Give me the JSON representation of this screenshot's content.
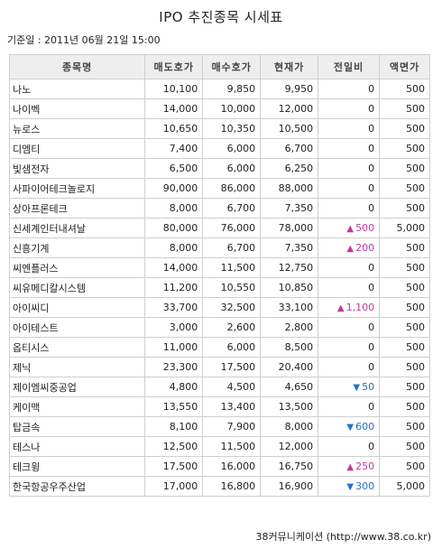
{
  "title": "IPO 추진종목 시세표",
  "date_line": "기준일 : 2011년 06월 21일 15:00",
  "columns": [
    "종목명",
    "매도호가",
    "매수호가",
    "현재가",
    "전일비",
    "액면가"
  ],
  "colors": {
    "up": "#c03aa0",
    "down": "#2970c4",
    "header_bg": "#eeeeee",
    "border": "#cfcfcf"
  },
  "rows": [
    {
      "name": "나노",
      "sell": "10,100",
      "buy": "9,850",
      "current": "9,950",
      "change": "0",
      "dir": "",
      "face": "500"
    },
    {
      "name": "나이벡",
      "sell": "14,000",
      "buy": "10,000",
      "current": "12,000",
      "change": "0",
      "dir": "",
      "face": "500"
    },
    {
      "name": "뉴로스",
      "sell": "10,650",
      "buy": "10,350",
      "current": "10,500",
      "change": "0",
      "dir": "",
      "face": "500"
    },
    {
      "name": "디엠티",
      "sell": "7,400",
      "buy": "6,000",
      "current": "6,700",
      "change": "0",
      "dir": "",
      "face": "500"
    },
    {
      "name": "빛샘전자",
      "sell": "6,500",
      "buy": "6,000",
      "current": "6,250",
      "change": "0",
      "dir": "",
      "face": "500"
    },
    {
      "name": "사파이어테크놀로지",
      "sell": "90,000",
      "buy": "86,000",
      "current": "88,000",
      "change": "0",
      "dir": "",
      "face": "500"
    },
    {
      "name": "상아프론테크",
      "sell": "8,000",
      "buy": "6,700",
      "current": "7,350",
      "change": "0",
      "dir": "",
      "face": "500"
    },
    {
      "name": "신세계인터내셔날",
      "sell": "80,000",
      "buy": "76,000",
      "current": "78,000",
      "change": "500",
      "dir": "up",
      "face": "5,000"
    },
    {
      "name": "신흥기계",
      "sell": "8,000",
      "buy": "6,700",
      "current": "7,350",
      "change": "200",
      "dir": "up",
      "face": "500"
    },
    {
      "name": "씨엔플러스",
      "sell": "14,000",
      "buy": "11,500",
      "current": "12,750",
      "change": "0",
      "dir": "",
      "face": "500"
    },
    {
      "name": "씨유메디칼시스템",
      "sell": "11,200",
      "buy": "10,550",
      "current": "10,850",
      "change": "0",
      "dir": "",
      "face": "500"
    },
    {
      "name": "아이씨디",
      "sell": "33,700",
      "buy": "32,500",
      "current": "33,100",
      "change": "1,100",
      "dir": "up",
      "face": "500"
    },
    {
      "name": "아이테스트",
      "sell": "3,000",
      "buy": "2,600",
      "current": "2,800",
      "change": "0",
      "dir": "",
      "face": "500"
    },
    {
      "name": "옵티시스",
      "sell": "11,000",
      "buy": "6,000",
      "current": "8,500",
      "change": "0",
      "dir": "",
      "face": "500"
    },
    {
      "name": "제닉",
      "sell": "23,300",
      "buy": "17,500",
      "current": "20,400",
      "change": "0",
      "dir": "",
      "face": "500"
    },
    {
      "name": "제이엠씨중공업",
      "sell": "4,800",
      "buy": "4,500",
      "current": "4,650",
      "change": "50",
      "dir": "down",
      "face": "500"
    },
    {
      "name": "케이맥",
      "sell": "13,550",
      "buy": "13,400",
      "current": "13,500",
      "change": "0",
      "dir": "",
      "face": "500"
    },
    {
      "name": "탑금속",
      "sell": "8,100",
      "buy": "7,900",
      "current": "8,000",
      "change": "600",
      "dir": "down",
      "face": "500"
    },
    {
      "name": "테스나",
      "sell": "12,500",
      "buy": "11,500",
      "current": "12,000",
      "change": "0",
      "dir": "",
      "face": "500"
    },
    {
      "name": "테크윙",
      "sell": "17,500",
      "buy": "16,000",
      "current": "16,750",
      "change": "250",
      "dir": "up",
      "face": "500"
    },
    {
      "name": "한국항공우주산업",
      "sell": "17,000",
      "buy": "16,800",
      "current": "16,900",
      "change": "300",
      "dir": "down",
      "face": "5,000"
    }
  ],
  "footer": "38커뮤니케이션 (http://www.38.co.kr)"
}
